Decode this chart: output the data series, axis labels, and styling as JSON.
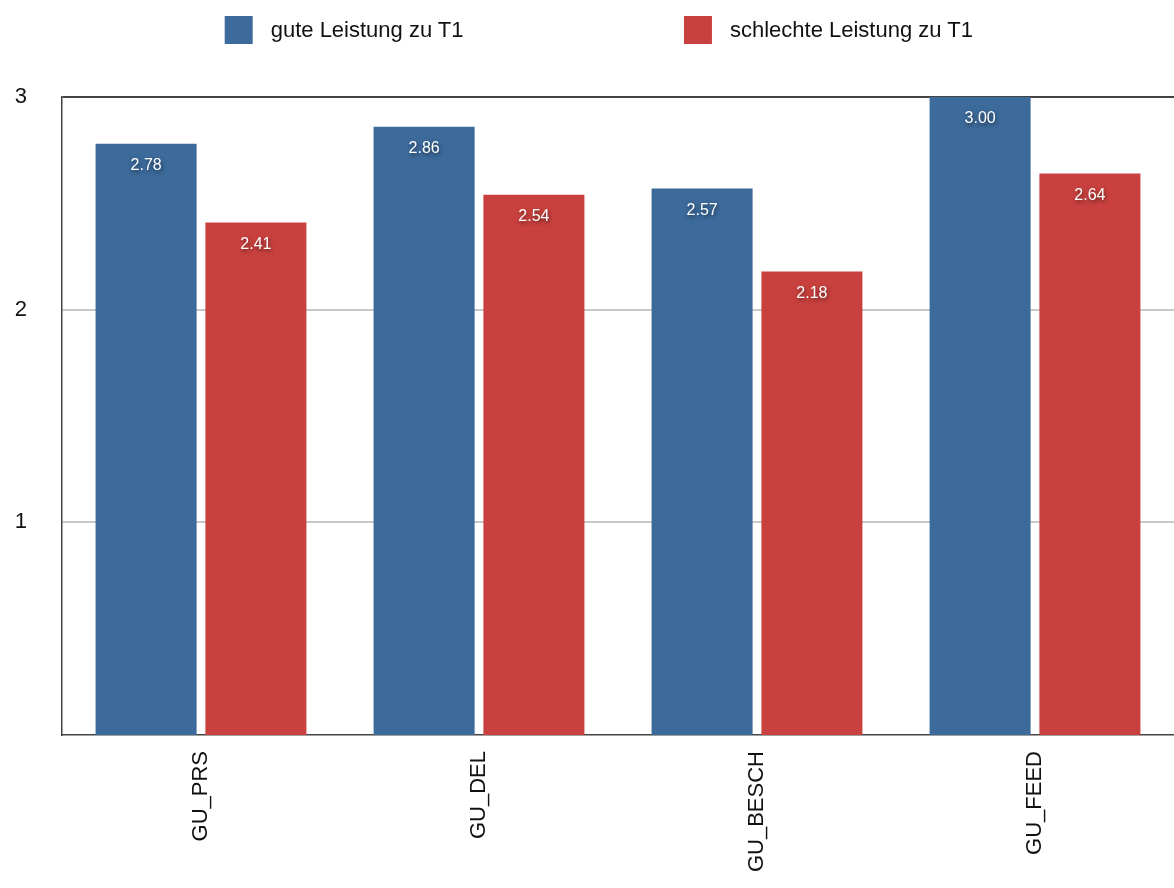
{
  "chart_data": {
    "type": "bar",
    "categories": [
      "GU_PRS",
      "GU_DEL",
      "GU_BESCH",
      "GU_FEED"
    ],
    "series": [
      {
        "name": "gute Leistung zu T1",
        "color": "#3c6a9b",
        "values": [
          2.78,
          2.86,
          2.57,
          3.0
        ],
        "value_labels": [
          "2.78",
          "2.86",
          "2.57",
          "3.00"
        ]
      },
      {
        "name": "schlechte Leistung zu T1",
        "color": "#c9413e",
        "values": [
          2.41,
          2.54,
          2.18,
          2.64
        ],
        "value_labels": [
          "2.41",
          "2.54",
          "2.18",
          "2.64"
        ]
      }
    ],
    "ylim": [
      0,
      3
    ],
    "yticks": [
      1,
      2,
      3
    ],
    "grid": "y",
    "legend": "top"
  }
}
